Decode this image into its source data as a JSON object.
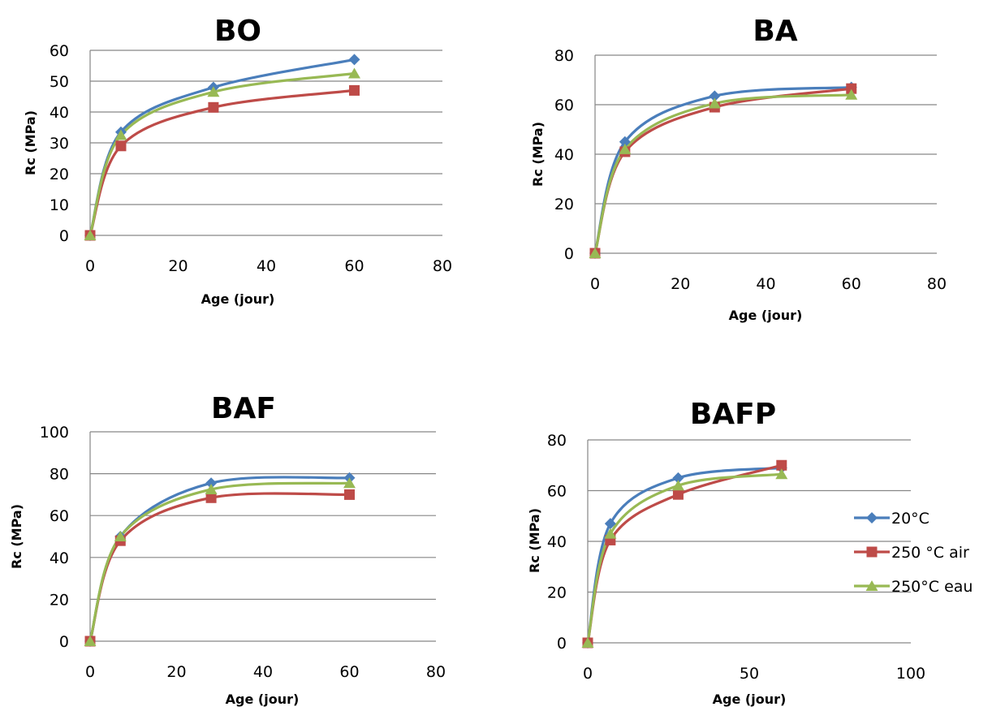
{
  "figure_colors": {
    "20C": "#4a7ebb",
    "250C_air": "#be4b48",
    "250C_eau": "#98b954",
    "gridline": "#868686"
  },
  "legend": {
    "items": [
      {
        "label": "20°C",
        "marker": "diamond",
        "color": "#4a7ebb"
      },
      {
        "label": "250 °C air",
        "marker": "square",
        "color": "#be4b48"
      },
      {
        "label": "250°C eau",
        "marker": "triangle",
        "color": "#98b954"
      }
    ]
  },
  "chart_data": [
    {
      "type": "line",
      "smooth": true,
      "title": "BO",
      "xlabel": "Age (jour)",
      "ylabel": "Rc (MPa)",
      "xlim": [
        0,
        80
      ],
      "ylim": [
        0,
        60
      ],
      "xticks": [
        0,
        20,
        40,
        60,
        80
      ],
      "yticks": [
        0,
        10,
        20,
        30,
        40,
        50,
        60
      ],
      "grid": "horizontal",
      "x": [
        0,
        7,
        28,
        60
      ],
      "series": [
        {
          "name": "20°C",
          "values": [
            0,
            33.5,
            48,
            57
          ]
        },
        {
          "name": "250 °C air",
          "values": [
            0,
            29,
            41.5,
            47
          ]
        },
        {
          "name": "250°C eau",
          "values": [
            0,
            32.5,
            46.5,
            52.5
          ]
        }
      ]
    },
    {
      "type": "line",
      "smooth": true,
      "title": "BA",
      "xlabel": "Age (jour)",
      "ylabel": "Rc (MPa)",
      "xlim": [
        0,
        80
      ],
      "ylim": [
        0,
        80
      ],
      "xticks": [
        0,
        20,
        40,
        60,
        80
      ],
      "yticks": [
        0,
        20,
        40,
        60,
        80
      ],
      "grid": "horizontal",
      "x": [
        0,
        7,
        28,
        60
      ],
      "series": [
        {
          "name": "20°C",
          "values": [
            0,
            45,
            63.5,
            67
          ]
        },
        {
          "name": "250 °C air",
          "values": [
            0,
            41,
            59,
            66.5
          ]
        },
        {
          "name": "250°C eau",
          "values": [
            0,
            42,
            60.5,
            64
          ]
        }
      ]
    },
    {
      "type": "line",
      "smooth": true,
      "title": "BAF",
      "xlabel": "Age (jour)",
      "ylabel": "Rc (MPa)",
      "xlim": [
        0,
        80
      ],
      "ylim": [
        0,
        100
      ],
      "xticks": [
        0,
        20,
        40,
        60,
        80
      ],
      "yticks": [
        0,
        20,
        40,
        60,
        80,
        100
      ],
      "grid": "horizontal",
      "x": [
        0,
        7,
        28,
        60
      ],
      "series": [
        {
          "name": "20°C",
          "values": [
            0,
            50,
            75.5,
            78
          ]
        },
        {
          "name": "250 °C air",
          "values": [
            0,
            48,
            68.5,
            70
          ]
        },
        {
          "name": "250°C eau",
          "values": [
            0,
            50,
            72.5,
            75.5
          ]
        }
      ]
    },
    {
      "type": "line",
      "smooth": true,
      "title": "BAFP",
      "xlabel": "Age (jour)",
      "ylabel": "Rc (MPa)",
      "xlim": [
        0,
        100
      ],
      "ylim": [
        0,
        80
      ],
      "xticks": [
        0,
        50,
        100
      ],
      "yticks": [
        0,
        20,
        40,
        60,
        80
      ],
      "grid": "horizontal",
      "legend_position": "right",
      "x": [
        0,
        7,
        28,
        60
      ],
      "series": [
        {
          "name": "20°C",
          "values": [
            0,
            47,
            65,
            69
          ]
        },
        {
          "name": "250 °C air",
          "values": [
            0,
            40.5,
            58.5,
            70
          ]
        },
        {
          "name": "250°C eau",
          "values": [
            0,
            43,
            62,
            66.5
          ]
        }
      ]
    }
  ]
}
